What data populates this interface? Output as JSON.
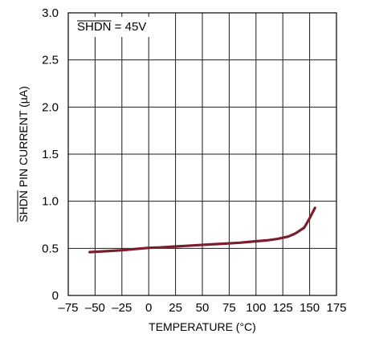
{
  "chart_data": {
    "type": "line",
    "title": "",
    "xlabel": "TEMPERATURE (°C)",
    "ylabel": {
      "overline": "SHDN",
      "rest": " PIN CURRENT (µA)"
    },
    "xlim": [
      -75,
      175
    ],
    "ylim": [
      0,
      3.0
    ],
    "x_ticks": [
      -75,
      -50,
      -25,
      0,
      25,
      50,
      75,
      100,
      125,
      150,
      175
    ],
    "x_tick_labels": [
      "–75",
      "–50",
      "–25",
      "0",
      "25",
      "50",
      "75",
      "100",
      "125",
      "150",
      "175"
    ],
    "y_ticks": [
      0,
      0.5,
      1.0,
      1.5,
      2.0,
      2.5,
      3.0
    ],
    "y_tick_labels": [
      "0",
      "0.5",
      "1.0",
      "1.5",
      "2.0",
      "2.5",
      "3.0"
    ],
    "grid": true,
    "annotation": {
      "overline": "SHDN",
      "rest": " = 45V",
      "placement": "top-left"
    },
    "series": [
      {
        "color": "#7a1f2e",
        "x": [
          -55,
          -40,
          -25,
          -10,
          0,
          10,
          25,
          40,
          55,
          70,
          85,
          100,
          110,
          120,
          130,
          137,
          145,
          150,
          155
        ],
        "y": [
          0.46,
          0.47,
          0.48,
          0.495,
          0.505,
          0.51,
          0.52,
          0.53,
          0.54,
          0.55,
          0.56,
          0.575,
          0.585,
          0.6,
          0.625,
          0.66,
          0.72,
          0.82,
          0.93
        ]
      }
    ]
  }
}
